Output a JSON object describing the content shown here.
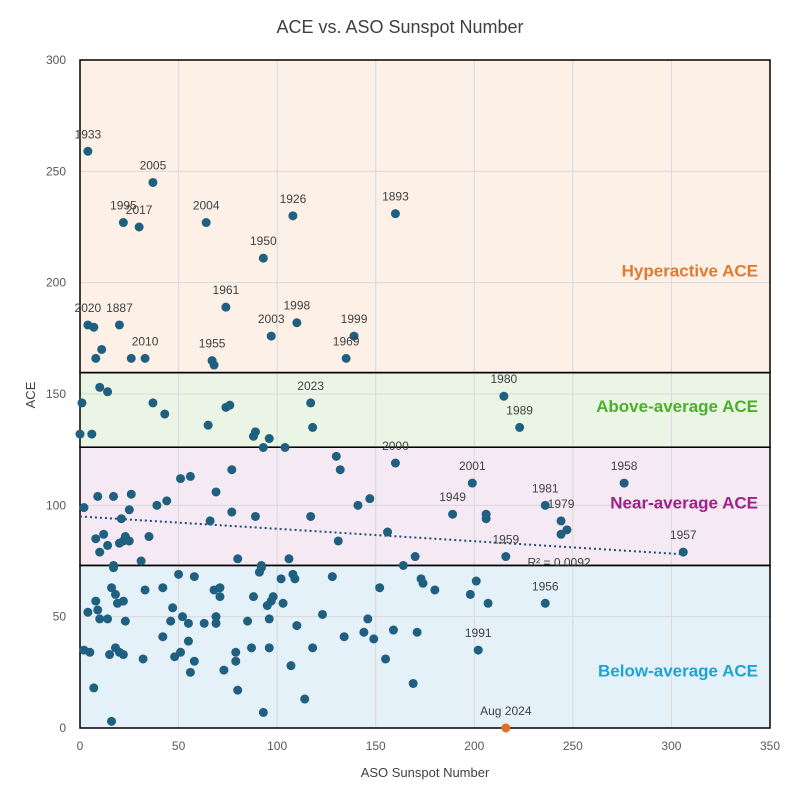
{
  "chart_data": {
    "type": "scatter",
    "title": "ACE vs. ASO Sunspot Number",
    "xlabel": "ASO Sunspot Number",
    "ylabel": "ACE",
    "xlim": [
      0,
      350
    ],
    "ylim": [
      0,
      300
    ],
    "xticks": [
      "0",
      "50",
      "100",
      "150",
      "200",
      "250",
      "300",
      "350"
    ],
    "yticks": [
      "0",
      "50",
      "100",
      "150",
      "200",
      "250",
      "300"
    ],
    "grid": true,
    "colors": {
      "point": "#1f5f7f",
      "highlight": "#e07020",
      "trend": "#1f4e79",
      "grid": "#d9d9d9",
      "axis_text": "#595959"
    },
    "bands": [
      {
        "name": "Hyperactive ACE",
        "y0": 159.6,
        "y1": 300,
        "fill": "#fdf0e6",
        "color": "#e07a30"
      },
      {
        "name": "Above-average ACE",
        "y0": 126.1,
        "y1": 159.6,
        "fill": "#ebf5e6",
        "color": "#4caf2a"
      },
      {
        "name": "Near-average ACE",
        "y0": 73,
        "y1": 126.1,
        "fill": "#f5e9f3",
        "color": "#a0208a"
      },
      {
        "name": "Below-average ACE",
        "y0": 0,
        "y1": 73,
        "fill": "#e4f1f8",
        "color": "#1ea3d6"
      }
    ],
    "trendline": {
      "x": [
        0,
        306
      ],
      "y": [
        95,
        78
      ],
      "r2_text": "R² = 0.0092"
    },
    "labeled_points": [
      {
        "label": "1933",
        "x": 4,
        "y": 259
      },
      {
        "label": "2005",
        "x": 37,
        "y": 245
      },
      {
        "label": "1995",
        "x": 22,
        "y": 227
      },
      {
        "label": "2017",
        "x": 30,
        "y": 225
      },
      {
        "label": "2004",
        "x": 64,
        "y": 227
      },
      {
        "label": "1926",
        "x": 108,
        "y": 230
      },
      {
        "label": "1893",
        "x": 160,
        "y": 231
      },
      {
        "label": "1950",
        "x": 93,
        "y": 211
      },
      {
        "label": "1961",
        "x": 74,
        "y": 189
      },
      {
        "label": "2020",
        "x": 4,
        "y": 181
      },
      {
        "label": "1887",
        "x": 20,
        "y": 181
      },
      {
        "label": "1998",
        "x": 110,
        "y": 182
      },
      {
        "label": "2003",
        "x": 97,
        "y": 176
      },
      {
        "label": "1999",
        "x": 139,
        "y": 176
      },
      {
        "label": "2010",
        "x": 33,
        "y": 166
      },
      {
        "label": "1955",
        "x": 67,
        "y": 165
      },
      {
        "label": "1969",
        "x": 135,
        "y": 166
      },
      {
        "label": "2023",
        "x": 117,
        "y": 146
      },
      {
        "label": "1980",
        "x": 215,
        "y": 149
      },
      {
        "label": "1989",
        "x": 223,
        "y": 135
      },
      {
        "label": "2000",
        "x": 160,
        "y": 119
      },
      {
        "label": "2001",
        "x": 199,
        "y": 110
      },
      {
        "label": "1958",
        "x": 276,
        "y": 110
      },
      {
        "label": "1949",
        "x": 189,
        "y": 96
      },
      {
        "label": "1981",
        "x": 236,
        "y": 100
      },
      {
        "label": "1979",
        "x": 244,
        "y": 93
      },
      {
        "label": "1957",
        "x": 306,
        "y": 79
      },
      {
        "label": "1959",
        "x": 216,
        "y": 77
      },
      {
        "label": "1956",
        "x": 236,
        "y": 56
      },
      {
        "label": "1991",
        "x": 202,
        "y": 35
      },
      {
        "label": "Aug 2024",
        "x": 216,
        "y": 0,
        "highlight": true
      }
    ],
    "points": [
      [
        7,
        180
      ],
      [
        11,
        170
      ],
      [
        8,
        166
      ],
      [
        26,
        166
      ],
      [
        68,
        163
      ],
      [
        1,
        146
      ],
      [
        10,
        153
      ],
      [
        14,
        151
      ],
      [
        37,
        146
      ],
      [
        43,
        141
      ],
      [
        74,
        144
      ],
      [
        76,
        145
      ],
      [
        0,
        132
      ],
      [
        6,
        132
      ],
      [
        65,
        136
      ],
      [
        88,
        131
      ],
      [
        89,
        133
      ],
      [
        93,
        126
      ],
      [
        96,
        130
      ],
      [
        104,
        126
      ],
      [
        118,
        135
      ],
      [
        2,
        99
      ],
      [
        9,
        104
      ],
      [
        17,
        104
      ],
      [
        26,
        105
      ],
      [
        8,
        85
      ],
      [
        12,
        87
      ],
      [
        14,
        82
      ],
      [
        10,
        79
      ],
      [
        17,
        72
      ],
      [
        20,
        83
      ],
      [
        22,
        84
      ],
      [
        23,
        86
      ],
      [
        25,
        84
      ],
      [
        21,
        94
      ],
      [
        25,
        98
      ],
      [
        35,
        86
      ],
      [
        31,
        75
      ],
      [
        39,
        100
      ],
      [
        44,
        102
      ],
      [
        51,
        112
      ],
      [
        56,
        113
      ],
      [
        66,
        93
      ],
      [
        69,
        106
      ],
      [
        77,
        97
      ],
      [
        77,
        116
      ],
      [
        80,
        76
      ],
      [
        89,
        95
      ],
      [
        92,
        73
      ],
      [
        106,
        76
      ],
      [
        117,
        95
      ],
      [
        130,
        122
      ],
      [
        131,
        84
      ],
      [
        132,
        116
      ],
      [
        141,
        100
      ],
      [
        147,
        103
      ],
      [
        156,
        88
      ],
      [
        164,
        73
      ],
      [
        170,
        77
      ],
      [
        206,
        96
      ],
      [
        206,
        94
      ],
      [
        244,
        87
      ],
      [
        247,
        89
      ],
      [
        17,
        73
      ],
      [
        4,
        52
      ],
      [
        8,
        57
      ],
      [
        9,
        53
      ],
      [
        10,
        49
      ],
      [
        14,
        49
      ],
      [
        16,
        63
      ],
      [
        18,
        60
      ],
      [
        19,
        56
      ],
      [
        22,
        57
      ],
      [
        23,
        48
      ],
      [
        15,
        33
      ],
      [
        18,
        36
      ],
      [
        20,
        34
      ],
      [
        22,
        33
      ],
      [
        2,
        35
      ],
      [
        5,
        34
      ],
      [
        7,
        18
      ],
      [
        16,
        3
      ],
      [
        32,
        31
      ],
      [
        33,
        62
      ],
      [
        42,
        63
      ],
      [
        42,
        41
      ],
      [
        46,
        48
      ],
      [
        47,
        54
      ],
      [
        48,
        32
      ],
      [
        50,
        69
      ],
      [
        51,
        34
      ],
      [
        52,
        50
      ],
      [
        55,
        47
      ],
      [
        55,
        39
      ],
      [
        56,
        25
      ],
      [
        58,
        68
      ],
      [
        58,
        30
      ],
      [
        63,
        47
      ],
      [
        68,
        62
      ],
      [
        69,
        50
      ],
      [
        69,
        47
      ],
      [
        71,
        59
      ],
      [
        71,
        63
      ],
      [
        73,
        26
      ],
      [
        79,
        30
      ],
      [
        79,
        34
      ],
      [
        80,
        17
      ],
      [
        85,
        48
      ],
      [
        87,
        36
      ],
      [
        88,
        59
      ],
      [
        91,
        70
      ],
      [
        92,
        72
      ],
      [
        93,
        7
      ],
      [
        95,
        55
      ],
      [
        96,
        36
      ],
      [
        96,
        49
      ],
      [
        97,
        57
      ],
      [
        98,
        59
      ],
      [
        103,
        56
      ],
      [
        102,
        67
      ],
      [
        107,
        28
      ],
      [
        108,
        69
      ],
      [
        109,
        67
      ],
      [
        110,
        46
      ],
      [
        114,
        13
      ],
      [
        118,
        36
      ],
      [
        123,
        51
      ],
      [
        128,
        68
      ],
      [
        134,
        41
      ],
      [
        144,
        43
      ],
      [
        146,
        49
      ],
      [
        149,
        40
      ],
      [
        152,
        63
      ],
      [
        155,
        31
      ],
      [
        159,
        44
      ],
      [
        169,
        20
      ],
      [
        171,
        43
      ],
      [
        173,
        67
      ],
      [
        174,
        65
      ],
      [
        180,
        62
      ],
      [
        198,
        60
      ],
      [
        201,
        66
      ],
      [
        207,
        56
      ]
    ]
  }
}
